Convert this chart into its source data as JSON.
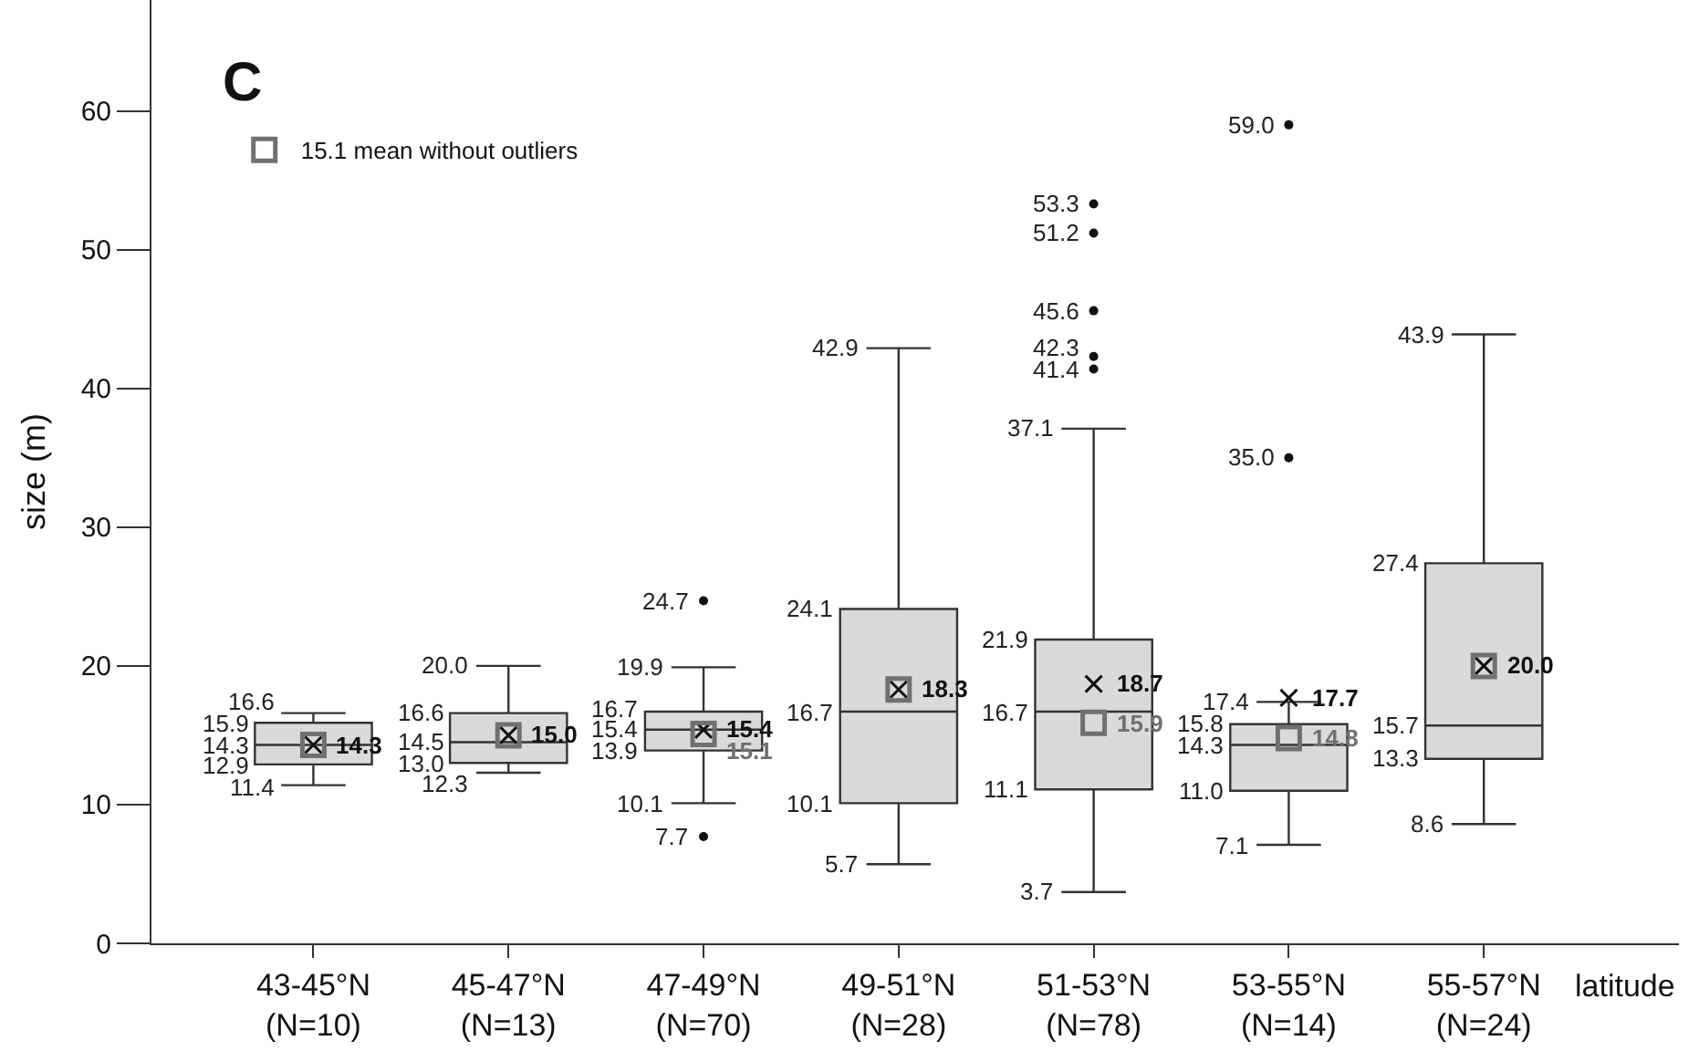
{
  "chart_data": {
    "type": "box",
    "title": "C",
    "ylabel": "size (m)",
    "xlabel": "latitude",
    "categories": [
      "43-45°N\n(N=10)",
      "45-47°N\n(N=13)",
      "47-49°N\n(N=70)",
      "49-51°N\n(N=28)",
      "51-53°N\n(N=78)",
      "53-55°N\n(N=14)",
      "55-57°N\n(N=24)"
    ],
    "ylim": [
      0,
      68
    ],
    "yticks": [
      0,
      10,
      20,
      30,
      40,
      50,
      60
    ],
    "grid": false,
    "legend": "top left",
    "series": [
      {
        "color": "#dadadc",
        "boxes": [
          {
            "low": 11.4,
            "q1": 12.9,
            "median": 14.3,
            "q3": 15.9,
            "high": 16.6
          },
          {
            "low": 12.3,
            "q1": 13.0,
            "median": 14.5,
            "q3": 16.6,
            "high": 20.0
          },
          {
            "low": 10.1,
            "q1": 13.9,
            "median": 15.4,
            "q3": 16.7,
            "high": 19.9,
            "outliers": [
              24.7,
              7.7
            ]
          },
          {
            "low": 5.7,
            "q1": 10.1,
            "median": 16.7,
            "q3": 24.1,
            "high": 42.9
          },
          {
            "low": 3.7,
            "q1": 11.1,
            "median": 16.7,
            "q3": 21.9,
            "high": 37.1,
            "outliers": [
              53.3,
              51.2,
              45.6,
              42.3,
              41.4
            ]
          },
          {
            "low": 7.1,
            "q1": 11.0,
            "median": 14.3,
            "q3": 15.8,
            "high": 17.4,
            "outliers": [
              59.0,
              35.0
            ]
          },
          {
            "low": 8.6,
            "q1": 13.3,
            "median": 15.7,
            "q3": 27.4,
            "high": 43.9
          }
        ]
      },
      {
        "type": "scatter",
        "color": "#111111",
        "marker": "cross",
        "values": [
          14.3,
          15.0,
          15.4,
          18.3,
          18.7,
          17.7,
          20.0
        ],
        "value_labels": [
          "14.3",
          "15.0",
          "15.4",
          "18.3",
          "18.7",
          "17.7",
          "20.0"
        ]
      },
      {
        "type": "scatter",
        "name": "15.1 mean without outliers",
        "color": "#707070",
        "marker": "square",
        "values": [
          14.3,
          15.0,
          15.1,
          18.3,
          15.9,
          14.8,
          20.0
        ],
        "value_labels": [
          null,
          null,
          "15.1",
          null,
          "15.9",
          "14.8",
          null
        ]
      }
    ],
    "annotations": [
      {
        "text": "11.4",
        "x": "43-45°N\n(N=10)",
        "y": 11.4
      },
      {
        "text": "12.9",
        "x": "43-45°N\n(N=10)",
        "y": 12.9
      },
      {
        "text": "14.3",
        "x": "43-45°N\n(N=10)",
        "y": 14.3
      },
      {
        "text": "15.9",
        "x": "43-45°N\n(N=10)",
        "y": 15.9
      },
      {
        "text": "16.6",
        "x": "43-45°N\n(N=10)",
        "y": 16.6
      },
      {
        "text": "12.3",
        "x": "45-47°N\n(N=13)",
        "y": 12.3
      },
      {
        "text": "13.0",
        "x": "45-47°N\n(N=13)",
        "y": 13.0
      },
      {
        "text": "14.5",
        "x": "45-47°N\n(N=13)",
        "y": 14.5
      },
      {
        "text": "16.6",
        "x": "45-47°N\n(N=13)",
        "y": 16.6
      },
      {
        "text": "20.0",
        "x": "45-47°N\n(N=13)",
        "y": 20.0
      },
      {
        "text": "10.1",
        "x": "47-49°N\n(N=70)",
        "y": 10.1
      },
      {
        "text": "13.9",
        "x": "47-49°N\n(N=70)",
        "y": 13.9
      },
      {
        "text": "15.4",
        "x": "47-49°N\n(N=70)",
        "y": 15.4
      },
      {
        "text": "16.7",
        "x": "47-49°N\n(N=70)",
        "y": 16.7
      },
      {
        "text": "19.9",
        "x": "47-49°N\n(N=70)",
        "y": 19.9
      },
      "24.7",
      "7.7",
      {
        "text": "5.7",
        "x": "49-51°N\n(N=28)",
        "y": 5.7
      },
      {
        "text": "10.1",
        "x": "49-51°N\n(N=28)",
        "y": 10.1
      },
      {
        "text": "16.7",
        "x": "49-51°N\n(N=28)",
        "y": 16.7
      },
      {
        "text": "24.1",
        "x": "49-51°N\n(N=28)",
        "y": 24.1
      },
      {
        "text": "42.9",
        "x": "49-51°N\n(N=28)",
        "y": 42.9
      },
      {
        "text": "3.7",
        "x": "51-53°N\n(N=78)",
        "y": 3.7
      },
      {
        "text": "11.1",
        "x": "51-53°N\n(N=78)",
        "y": 11.1
      },
      {
        "text": "16.7",
        "x": "51-53°N\n(N=78)",
        "y": 16.7
      },
      {
        "text": "21.9",
        "x": "51-53°N\n(N=78)",
        "y": 21.9
      },
      {
        "text": "37.1",
        "x": "51-53°N\n(N=78)",
        "y": 37.1
      },
      "53.3",
      "51.2",
      "45.6",
      "42.3",
      "41.4",
      {
        "text": "7.1",
        "x": "53-55°N\n(N=14)",
        "y": 7.1
      },
      {
        "text": "11.0",
        "x": "53-55°N\n(N=14)",
        "y": 11.0
      },
      {
        "text": "14.3",
        "x": "53-55°N\n(N=14)",
        "y": 14.3
      },
      {
        "text": "15.8",
        "x": "53-55°N\n(N=14)",
        "y": 15.8
      },
      {
        "text": "17.4",
        "x": "53-55°N\n(N=14)",
        "y": 17.4
      },
      "59.0",
      "35.0",
      {
        "text": "8.6",
        "x": "55-57°N\n(N=24)",
        "y": 8.6
      },
      {
        "text": "13.3",
        "x": "55-57°N\n(N=24)",
        "y": 13.3
      },
      {
        "text": "15.7",
        "x": "55-57°N\n(N=24)",
        "y": 15.7
      },
      {
        "text": "27.4",
        "x": "55-57°N\n(N=24)",
        "y": 27.4
      },
      {
        "text": "43.9",
        "x": "55-57°N\n(N=24)",
        "y": 43.9
      }
    ]
  }
}
